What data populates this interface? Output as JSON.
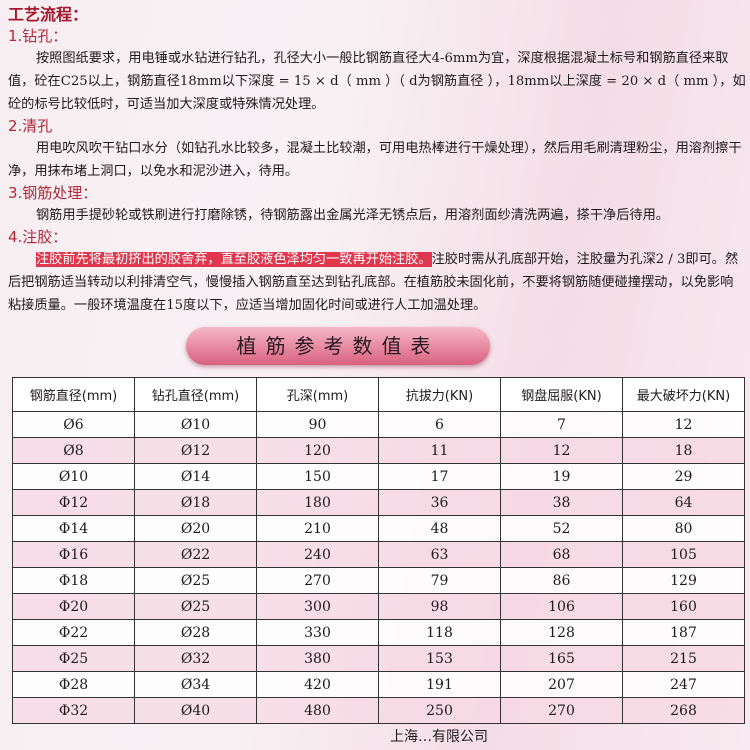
{
  "title": "工艺流程：",
  "sections": [
    {
      "heading": "1.钻孔：",
      "text": "按照图纸要求，用电锤或水钻进行钻孔，孔径大小一般比钢筋直径大4-6mm为宜，深度根据混凝土标号和钢筋直径来取值，砼在C25以上，钢筋直径18mm以下深度 = 15 × d（ mm ）（ d为钢筋直径 ），18mm以上深度 = 20 × d（ mm ），如砼的标号比较低时，可适当加大深度或特殊情况处理。"
    },
    {
      "heading": "2.清孔",
      "text": "用电吹风吹干钻口水分（如钻孔水比较多，混凝土比较潮，可用电热棒进行干燥处理），然后用毛刷清理粉尘，用溶剂擦干净，用抹布堵上洞口，以免水和泥沙进入，待用。"
    },
    {
      "heading": "3.钢筋处理：",
      "text": "钢筋用手提砂轮或铁刷进行打磨除锈，待钢筋露出金属光泽无锈点后，用溶剂面纱清洗两遍，搽干净后待用。"
    },
    {
      "heading": "4.注胶：",
      "highlight": "注胶前先将最初挤出的胶舍弃，直至胶液色泽均匀一致再开始注胶。",
      "text": "注胶时需从孔底部开始，注胶量为孔深2 / 3即可。然后把钢筋适当转动以利排清空气，慢慢插入钢筋直至达到钻孔底部。在植筋胶未固化前，不要将钢筋随便碰撞摆动，以免影响粘接质量。一般环境温度在15度以下，应适当增加固化时间或进行人工加温处理。"
    }
  ],
  "table_title": "植筋参考数值表",
  "table": {
    "headers": [
      "钢筋直径(mm)",
      "钻孔直径(mm)",
      "孔深(mm)",
      "抗拔力(KN)",
      "钢盘屈服(KN)",
      "最大破坏力(KN)"
    ],
    "rows": [
      [
        "Ø6",
        "Ø10",
        "90",
        "6",
        "7",
        "12"
      ],
      [
        "Ø8",
        "Ø12",
        "120",
        "11",
        "12",
        "18"
      ],
      [
        "Ø10",
        "Ø14",
        "150",
        "17",
        "19",
        "29"
      ],
      [
        "Φ12",
        "Ø18",
        "180",
        "36",
        "38",
        "64"
      ],
      [
        "Φ14",
        "Ø20",
        "210",
        "48",
        "52",
        "80"
      ],
      [
        "Φ16",
        "Ø22",
        "240",
        "63",
        "68",
        "105"
      ],
      [
        "Φ18",
        "Ø25",
        "270",
        "79",
        "86",
        "129"
      ],
      [
        "Φ20",
        "Ø25",
        "300",
        "98",
        "106",
        "160"
      ],
      [
        "Φ22",
        "Ø28",
        "330",
        "118",
        "128",
        "187"
      ],
      [
        "Φ25",
        "Ø32",
        "380",
        "153",
        "165",
        "215"
      ],
      [
        "Φ28",
        "Ø34",
        "420",
        "191",
        "207",
        "247"
      ],
      [
        "Φ32",
        "Ø40",
        "480",
        "250",
        "270",
        "268"
      ]
    ]
  },
  "footer": "上海…有限公司",
  "colors": {
    "heading": "#b0283a",
    "highlight": "#e0374e"
  }
}
